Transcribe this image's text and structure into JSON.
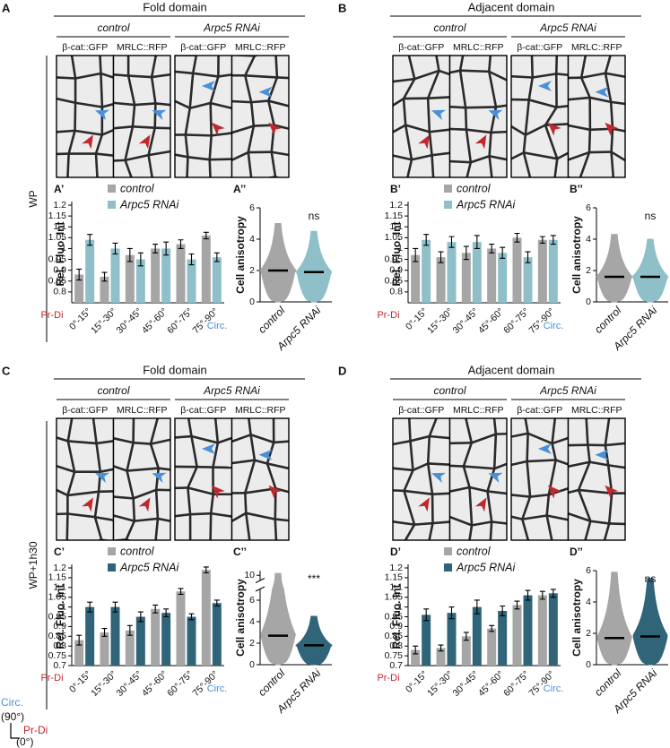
{
  "panels": [
    {
      "letter": "A",
      "domain": "Fold domain",
      "conditions": [
        "control",
        "Arpc5 RNAi"
      ],
      "markers": [
        "β-cat::GFP",
        "MRLC::RFP",
        "β-cat::GFP",
        "MRLC::RFP"
      ]
    },
    {
      "letter": "B",
      "domain": "Adjacent domain",
      "conditions": [
        "control",
        "Arpc5 RNAi"
      ],
      "markers": [
        "β-cat::GFP",
        "MRLC::RFP",
        "β-cat::GFP",
        "MRLC::RFP"
      ]
    },
    {
      "letter": "C",
      "domain": "Fold domain",
      "conditions": [
        "control",
        "Arpc5 RNAi"
      ],
      "markers": [
        "β-cat::GFP",
        "MRLC::RFP",
        "β-cat::GFP",
        "MRLC::RFP"
      ]
    },
    {
      "letter": "D",
      "domain": "Adjacent domain",
      "conditions": [
        "control",
        "Arpc5 RNAi"
      ],
      "markers": [
        "β-cat::GFP",
        "MRLC::RFP",
        "β-cat::GFP",
        "MRLC::RFP"
      ]
    }
  ],
  "row_labels": [
    "WP",
    "WP+1h30"
  ],
  "orientation": {
    "circ": "Circ.",
    "circ_angle": "(90°)",
    "prdi": "Pr-Di",
    "prdi_angle": "(0°)"
  },
  "chart_data": [
    {
      "type": "bar",
      "label": "A’",
      "ylabel": "Rel. Fluo. Int",
      "categories": [
        "0°-15°",
        "15°-30°",
        "30°-45°",
        "45°-60°",
        "60°-75°",
        "75°-90°"
      ],
      "x_start_label": "Pr-Di",
      "x_end_label": "Circ.",
      "series": [
        {
          "name": "control",
          "color": "#a6a6a6",
          "values": [
            0.88,
            0.87,
            0.97,
            1.0,
            1.02,
            1.06
          ],
          "errors": [
            0.025,
            0.02,
            0.03,
            0.02,
            0.02,
            0.015
          ]
        },
        {
          "name": "Arpc5 RNAi",
          "color": "#8fc0c9",
          "values": [
            1.04,
            1.0,
            0.95,
            1.0,
            0.95,
            0.96
          ],
          "errors": [
            0.025,
            0.025,
            0.03,
            0.03,
            0.025,
            0.02
          ]
        }
      ],
      "ylim": [
        0.75,
        1.2
      ],
      "yticks": [
        0.8,
        0.85,
        0.9,
        0.95,
        1,
        1.05,
        1.1,
        1.15,
        1.2
      ]
    },
    {
      "type": "violin",
      "label": "A’’",
      "ylabel": "Cell anisotropy",
      "categories": [
        "control",
        "Arpc5 RNAi"
      ],
      "colors": [
        "#a6a6a6",
        "#8fc0c9"
      ],
      "medians": [
        2.0,
        1.9
      ],
      "maxima": [
        5.0,
        4.5
      ],
      "ylim": [
        0,
        6
      ],
      "yticks": [
        0,
        2,
        4,
        6
      ],
      "significance": "ns"
    },
    {
      "type": "bar",
      "label": "B’",
      "ylabel": "Rel. Fluo. Int",
      "categories": [
        "0°-15°",
        "15°-30°",
        "30°-45°",
        "45°-60°",
        "60°-75°",
        "75°-90°"
      ],
      "x_start_label": "Pr-Di",
      "x_end_label": "Circ.",
      "series": [
        {
          "name": "control",
          "color": "#a6a6a6",
          "values": [
            0.97,
            0.96,
            0.98,
            1.0,
            1.05,
            1.04
          ],
          "errors": [
            0.03,
            0.025,
            0.03,
            0.02,
            0.02,
            0.015
          ]
        },
        {
          "name": "Arpc5 RNAi",
          "color": "#8fc0c9",
          "values": [
            1.04,
            1.03,
            1.03,
            0.98,
            0.96,
            1.04
          ],
          "errors": [
            0.025,
            0.025,
            0.03,
            0.025,
            0.025,
            0.02
          ]
        }
      ],
      "ylim": [
        0.75,
        1.2
      ],
      "yticks": [
        0.8,
        0.85,
        0.9,
        0.95,
        1,
        1.05,
        1.1,
        1.15,
        1.2
      ]
    },
    {
      "type": "violin",
      "label": "B’’",
      "ylabel": "Cell anisotropy",
      "categories": [
        "control",
        "Arpc5 RNAi"
      ],
      "colors": [
        "#a6a6a6",
        "#8fc0c9"
      ],
      "medians": [
        1.6,
        1.6
      ],
      "maxima": [
        4.3,
        4.0
      ],
      "ylim": [
        0,
        6
      ],
      "yticks": [
        0,
        2,
        4,
        6
      ],
      "significance": "ns"
    },
    {
      "type": "bar",
      "label": "C’",
      "ylabel": "Rel. Fluo. Int",
      "categories": [
        "0°-15°",
        "15°-30°",
        "30°-45°",
        "45°-60°",
        "60°-75°",
        "75°-90°"
      ],
      "x_start_label": "Pr-Di",
      "x_end_label": "Circ.",
      "series": [
        {
          "name": "control",
          "color": "#a6a6a6",
          "values": [
            0.83,
            0.87,
            0.88,
            0.99,
            1.08,
            1.19
          ],
          "errors": [
            0.025,
            0.02,
            0.025,
            0.02,
            0.015,
            0.015
          ]
        },
        {
          "name": "Arpc5 RNAi",
          "color": "#2f6479",
          "values": [
            1.0,
            1.0,
            0.95,
            0.97,
            0.95,
            1.02
          ],
          "errors": [
            0.025,
            0.025,
            0.025,
            0.02,
            0.015,
            0.015
          ]
        }
      ],
      "ylim": [
        0.7,
        1.2
      ],
      "yticks": [
        0.7,
        0.75,
        0.8,
        0.85,
        0.9,
        0.95,
        1,
        1.05,
        1.1,
        1.15,
        1.2
      ]
    },
    {
      "type": "violin",
      "label": "C’’",
      "ylabel": "Cell anisotropy",
      "categories": [
        "control",
        "Arpc5 RNAi"
      ],
      "colors": [
        "#a6a6a6",
        "#2f6479"
      ],
      "medians": [
        2.7,
        1.8
      ],
      "maxima": [
        10.2,
        4.5
      ],
      "ylim": [
        0,
        10.5
      ],
      "ybreak": [
        7,
        9.5
      ],
      "yticks": [
        0,
        2,
        4,
        6,
        10
      ],
      "significance": "***"
    },
    {
      "type": "bar",
      "label": "D’",
      "ylabel": "Rel. Fluo. Int",
      "categories": [
        "0°-15°",
        "15°-30°",
        "30°-45°",
        "45°-60°",
        "60°-75°",
        "75°-90°"
      ],
      "x_start_label": "Pr-Di",
      "x_end_label": "Circ.",
      "series": [
        {
          "name": "control",
          "color": "#a6a6a6",
          "values": [
            0.78,
            0.79,
            0.85,
            0.89,
            1.01,
            1.06
          ],
          "errors": [
            0.02,
            0.015,
            0.02,
            0.015,
            0.02,
            0.02
          ]
        },
        {
          "name": "Arpc5 RNAi",
          "color": "#2f6479",
          "values": [
            0.96,
            0.97,
            1.0,
            0.98,
            1.06,
            1.07
          ],
          "errors": [
            0.03,
            0.03,
            0.035,
            0.025,
            0.025,
            0.02
          ]
        }
      ],
      "ylim": [
        0.7,
        1.2
      ],
      "yticks": [
        0.7,
        0.75,
        0.8,
        0.85,
        0.9,
        0.95,
        1,
        1.05,
        1.1,
        1.15,
        1.2
      ]
    },
    {
      "type": "violin",
      "label": "D’’",
      "ylabel": "Cell anisotropy",
      "categories": [
        "control",
        "Arpc5 RNAi"
      ],
      "colors": [
        "#a6a6a6",
        "#2f6479"
      ],
      "medians": [
        1.7,
        1.8
      ],
      "maxima": [
        5.9,
        5.5
      ],
      "ylim": [
        0,
        6
      ],
      "yticks": [
        0,
        2,
        4,
        6
      ],
      "significance": "ns"
    }
  ]
}
